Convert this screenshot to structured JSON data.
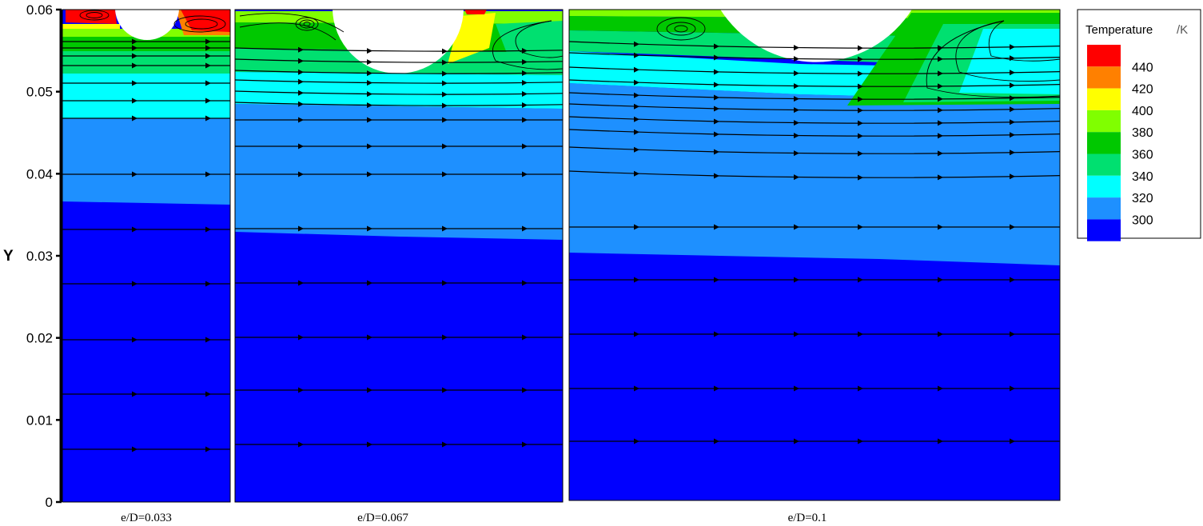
{
  "chart_data": {
    "type": "heatmap",
    "description_kind": "temperature contour maps with streamlines",
    "ylabel": "Y",
    "ylim": [
      0,
      0.06
    ],
    "y_ticks": [
      "0",
      "0.01",
      "0.02",
      "0.03",
      "0.04",
      "0.05",
      "0.06"
    ],
    "y_tick_values": [
      0,
      0.01,
      0.02,
      0.03,
      0.04,
      0.05,
      0.06
    ],
    "legend": {
      "title": "Temperature",
      "unit": "/K",
      "placement": "right",
      "levels": [
        {
          "value": "440",
          "color": "#ff0000"
        },
        {
          "value": "420",
          "color": "#ff8000"
        },
        {
          "value": "400",
          "color": "#ffff00"
        },
        {
          "value": "380",
          "color": "#80ff00"
        },
        {
          "value": "360",
          "color": "#00c800"
        },
        {
          "value": "340",
          "color": "#00e070"
        },
        {
          "value": "320",
          "color": "#00ffff"
        },
        {
          "value": "300",
          "color": "#1e90ff"
        }
      ],
      "bottom_color": "#0000ff"
    },
    "panels": [
      {
        "label": "e/D=0.033",
        "groove_bottom_y": 0.056,
        "band_top_y": {
          "300": 0.0365,
          "320": 0.047,
          "340": 0.052,
          "360": 0.0545,
          "380": 0.056
        },
        "band_end_y": {
          "300": 0.036,
          "320": 0.047
        }
      },
      {
        "label": "e/D=0.067",
        "groove_bottom_y": 0.052,
        "band_top_y": {
          "300": 0.033,
          "320": 0.0485,
          "340": 0.051,
          "360": 0.055,
          "380": 0.058
        },
        "band_end_y": {
          "300": 0.032,
          "320": 0.0485
        }
      },
      {
        "label": "e/D=0.1",
        "groove_bottom_y": 0.048,
        "band_top_y": {
          "300": 0.0305,
          "320": 0.0505,
          "340": 0.055,
          "360": 0.058,
          "380": 0.059
        },
        "band_end_y": {
          "300": 0.029,
          "320": 0.049
        }
      }
    ]
  },
  "colors": {
    "t300": "#0000ff",
    "t320": "#1e90ff",
    "t340": "#00ffff",
    "t360": "#00e070",
    "t380": "#00c800",
    "t400": "#80ff00",
    "t420": "#ffff00",
    "t440": "#ff8000",
    "hot": "#ff0000"
  }
}
